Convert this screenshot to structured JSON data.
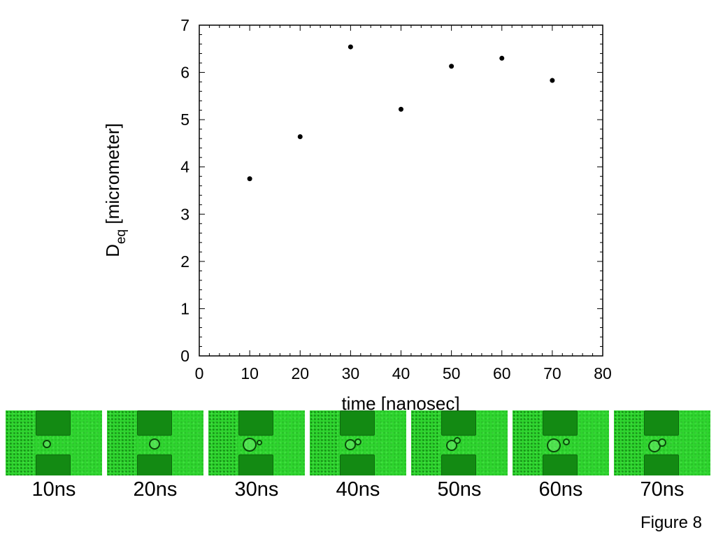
{
  "chart_data": {
    "type": "scatter",
    "x": [
      10,
      20,
      30,
      40,
      50,
      60,
      70
    ],
    "y": [
      3.75,
      4.64,
      6.54,
      5.22,
      6.13,
      6.3,
      5.83
    ],
    "xlabel": "time [nanosec]",
    "ylabel_main": "D",
    "ylabel_sub": "eq",
    "ylabel_rest": " [micrometer]",
    "xlim": [
      0,
      80
    ],
    "ylim": [
      0,
      7
    ],
    "xticks": [
      0,
      10,
      20,
      30,
      40,
      50,
      60,
      70,
      80
    ],
    "yticks": [
      0,
      1,
      2,
      3,
      4,
      5,
      6,
      7
    ],
    "grid": false,
    "marker_color": "#000000"
  },
  "frames": [
    {
      "caption": "10ns",
      "bubbles": [
        {
          "x": 57,
          "y": 46,
          "r": 4
        }
      ]
    },
    {
      "caption": "20ns",
      "bubbles": [
        {
          "x": 66,
          "y": 46,
          "r": 6
        }
      ]
    },
    {
      "caption": "30ns",
      "bubbles": [
        {
          "x": 57,
          "y": 47,
          "r": 8
        },
        {
          "x": 71,
          "y": 44,
          "r": 2
        }
      ]
    },
    {
      "caption": "40ns",
      "bubbles": [
        {
          "x": 56,
          "y": 47,
          "r": 6
        },
        {
          "x": 67,
          "y": 43,
          "r": 3
        }
      ]
    },
    {
      "caption": "50ns",
      "bubbles": [
        {
          "x": 56,
          "y": 48,
          "r": 6
        },
        {
          "x": 64,
          "y": 41,
          "r": 3
        }
      ]
    },
    {
      "caption": "60ns",
      "bubbles": [
        {
          "x": 57,
          "y": 48,
          "r": 8
        },
        {
          "x": 75,
          "y": 43,
          "r": 3
        }
      ]
    },
    {
      "caption": "70ns",
      "bubbles": [
        {
          "x": 56,
          "y": 49,
          "r": 7
        },
        {
          "x": 67,
          "y": 44,
          "r": 4
        }
      ]
    }
  ],
  "figure_label": "Figure 8"
}
